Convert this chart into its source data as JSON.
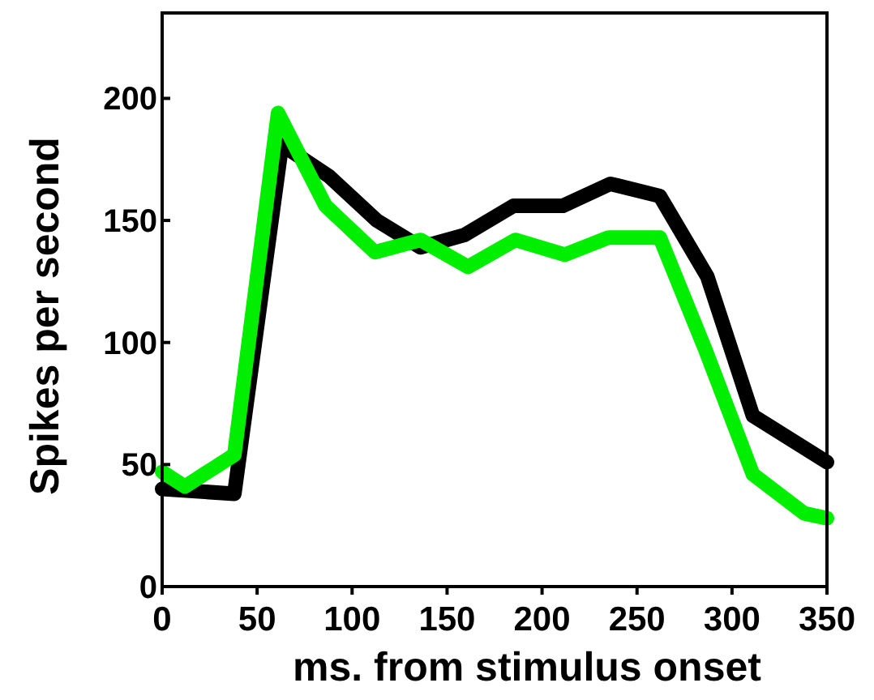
{
  "chart_data": {
    "type": "line",
    "xlabel": "ms. from stimulus onset",
    "ylabel": "Spikes per second",
    "xlim": [
      0,
      350
    ],
    "ylim": [
      0,
      235
    ],
    "xticks": [
      0,
      50,
      100,
      150,
      200,
      250,
      300,
      350
    ],
    "yticks": [
      0,
      50,
      100,
      150,
      200
    ],
    "grid": false,
    "marker": "none",
    "line_style": "solid",
    "series": [
      {
        "color": "#000000",
        "x": [
          0,
          38,
          63,
          88,
          113,
          136,
          159,
          185,
          211,
          236,
          262,
          287,
          311,
          350
        ],
        "values": [
          40,
          38,
          181,
          168,
          150,
          139,
          144,
          156,
          156,
          165,
          160,
          127,
          70,
          51
        ]
      },
      {
        "color": "#00ee00",
        "x": [
          0,
          12,
          38,
          61,
          86,
          112,
          136,
          161,
          186,
          212,
          235,
          262,
          286,
          311,
          338,
          350
        ],
        "values": [
          47,
          41,
          54,
          194,
          156,
          137,
          142,
          131,
          142,
          136,
          143,
          143,
          97,
          46,
          30,
          28
        ]
      }
    ]
  }
}
